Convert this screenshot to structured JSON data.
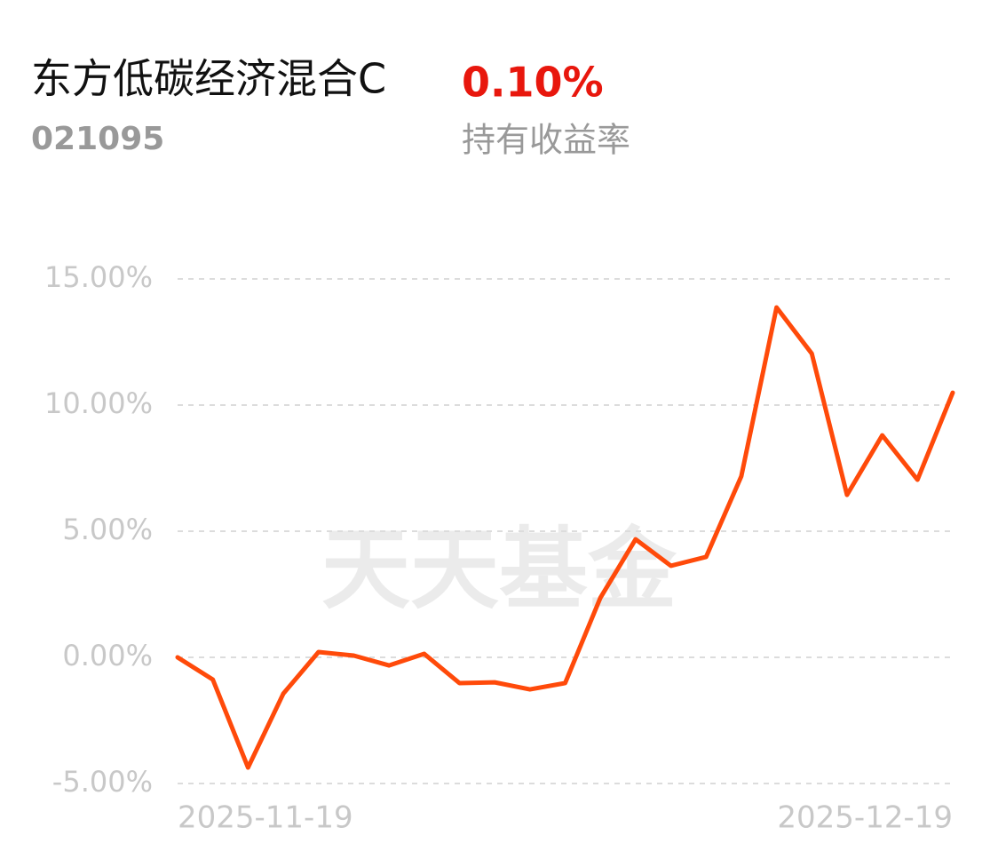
{
  "header": {
    "title": "东方低碳经济混合C",
    "code": "021095",
    "return_value": "0.10%",
    "return_label": "持有收益率"
  },
  "chart_data": {
    "type": "line",
    "watermark": "天天基金",
    "categories": [
      "2025-11-19",
      null,
      null,
      null,
      null,
      null,
      null,
      null,
      null,
      null,
      null,
      null,
      null,
      null,
      null,
      null,
      null,
      null,
      null,
      null,
      null,
      null,
      "2025-12-19"
    ],
    "series": [
      {
        "color": "#ff4a0a",
        "values": [
          0,
          -0.88,
          -4.37,
          -1.44,
          0.21,
          0.07,
          -0.32,
          0.14,
          -1.02,
          -0.99,
          -1.27,
          -1.02,
          2.36,
          4.68,
          3.63,
          3.98,
          7.18,
          13.87,
          12.04,
          6.44,
          8.8,
          7.04,
          10.49
        ]
      }
    ],
    "ylim": [
      -5,
      15
    ],
    "yticks": [
      {
        "value": 15,
        "label": "15.00%"
      },
      {
        "value": 10,
        "label": "10.00%"
      },
      {
        "value": 5,
        "label": "5.00%"
      },
      {
        "value": 0,
        "label": "0.00%"
      },
      {
        "value": -5,
        "label": "-5.00%"
      }
    ],
    "grid": true
  }
}
